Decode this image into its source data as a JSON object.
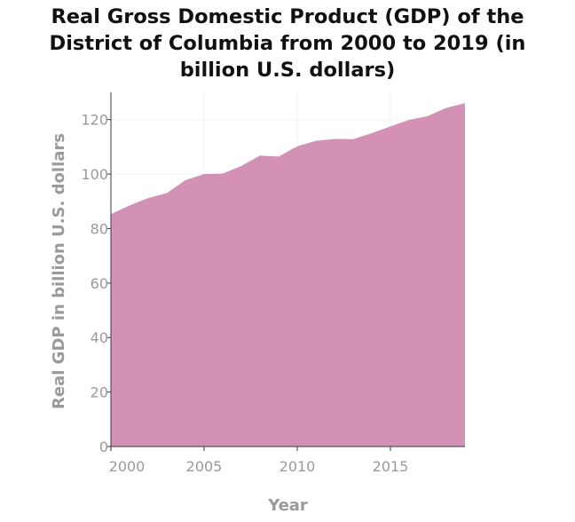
{
  "chart_data": {
    "type": "area",
    "title_lines": [
      "Real Gross Domestic Product (GDP) of the",
      "District of Columbia from 2000 to 2019 (in",
      "billion U.S. dollars)"
    ],
    "xlabel": "Year",
    "ylabel": "Real GDP in billion U.S. dollars",
    "xlim": [
      2000,
      2019
    ],
    "ylim": [
      0,
      130
    ],
    "x_ticks": [
      2000,
      2005,
      2010,
      2015
    ],
    "y_ticks": [
      0,
      20,
      40,
      60,
      80,
      100,
      120
    ],
    "grid": true,
    "legend": "none",
    "fill_color": "#d291b5",
    "series": [
      {
        "x": [
          2000,
          2001,
          2002,
          2003,
          2004,
          2005,
          2006,
          2007,
          2008,
          2009,
          2010,
          2011,
          2012,
          2013,
          2014,
          2015,
          2016,
          2017,
          2018,
          2019
        ],
        "values": [
          85.3,
          88.5,
          91.2,
          93.0,
          97.8,
          100.0,
          100.2,
          103.0,
          106.8,
          106.4,
          110.2,
          112.2,
          112.9,
          112.8,
          115.0,
          117.5,
          119.9,
          121.3,
          124.3,
          126.0
        ]
      }
    ]
  }
}
